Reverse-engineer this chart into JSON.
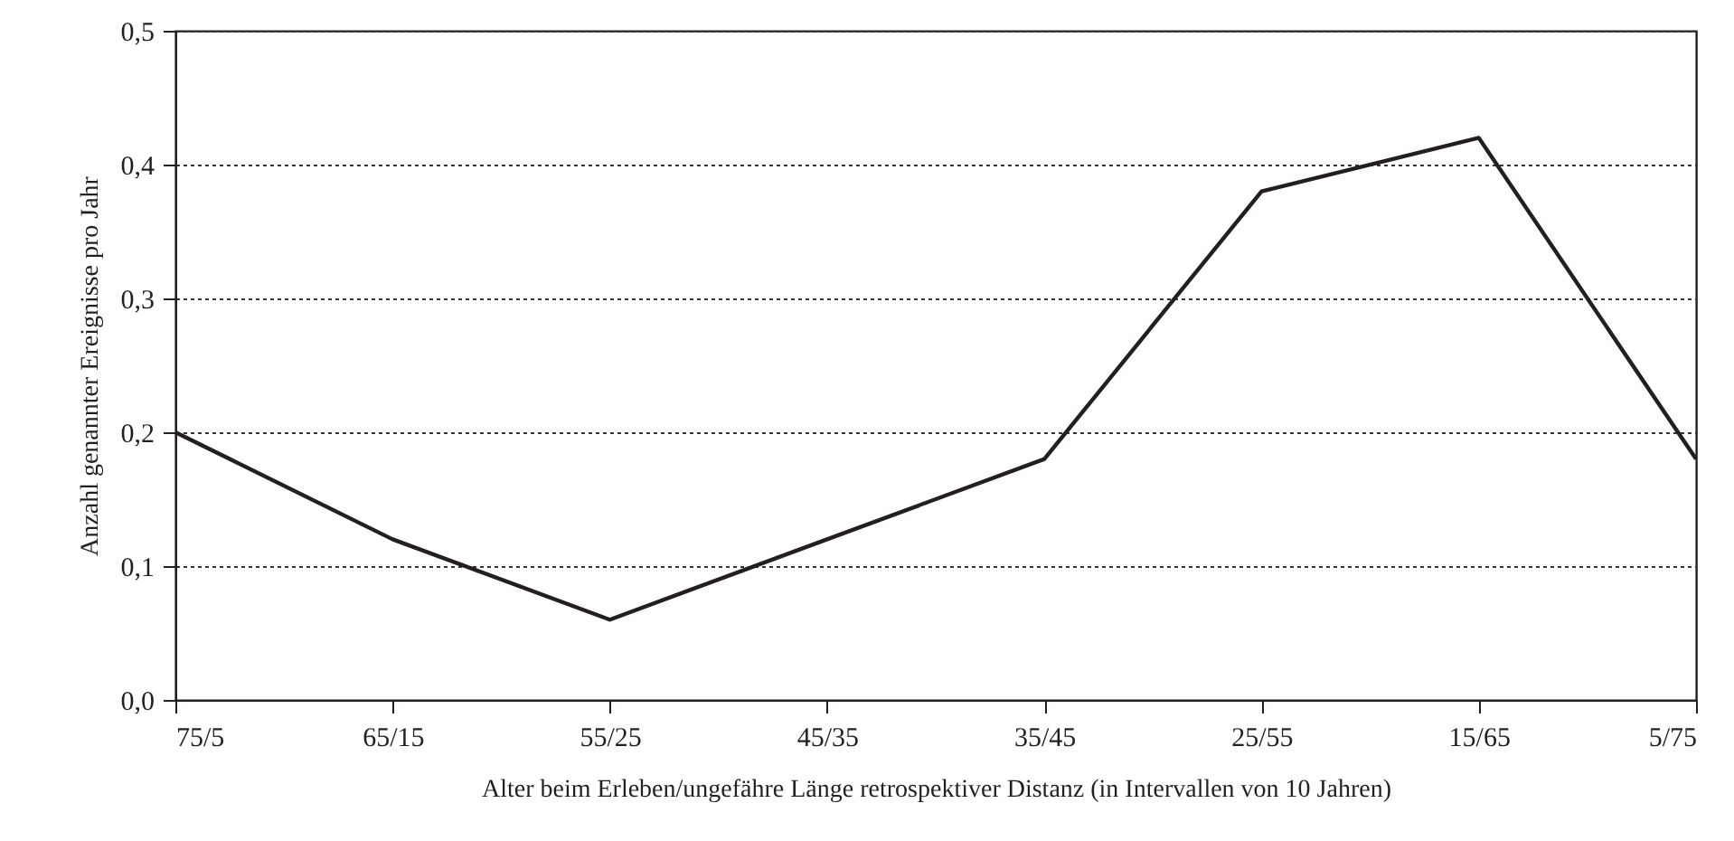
{
  "chart_data": {
    "type": "line",
    "xlabel": "Alter beim Erleben/ungefähre Länge retrospektiver Distanz (in Intervallen von 10 Jahren)",
    "ylabel": "Anzahl genannter Ereignisse pro Jahr",
    "categories": [
      "75/5",
      "65/15",
      "55/25",
      "45/35",
      "35/45",
      "25/55",
      "15/65",
      "5/75"
    ],
    "series": [
      {
        "color": "#231f20",
        "values": [
          0.2,
          0.12,
          0.06,
          0.12,
          0.18,
          0.38,
          0.42,
          0.18
        ]
      }
    ],
    "ylim": [
      0,
      0.5
    ],
    "yticks": [
      {
        "value": 0,
        "label": "0,0"
      },
      {
        "value": 0.1,
        "label": "0,1"
      },
      {
        "value": 0.2,
        "label": "0,2"
      },
      {
        "value": 0.3,
        "label": "0,3"
      },
      {
        "value": 0.4,
        "label": "0,4"
      },
      {
        "value": 0.5,
        "label": "0,5"
      }
    ],
    "grid": "y",
    "line_style": "solid",
    "marker": "none"
  }
}
